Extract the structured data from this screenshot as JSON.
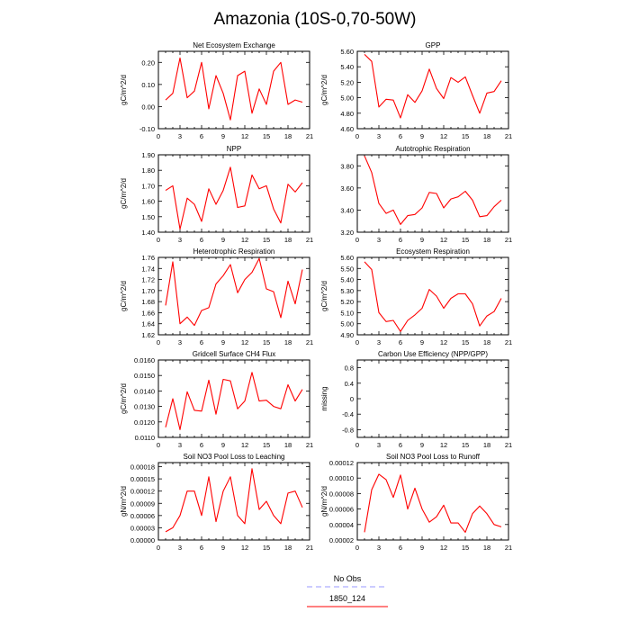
{
  "figure": {
    "title": "Amazonia (10S-0,70-50W)"
  },
  "legend": {
    "entries": [
      {
        "label": "No Obs",
        "color": "#9999ff",
        "style": "dashed"
      },
      {
        "label": "1850_124",
        "color": "#ff0000",
        "style": "solid"
      }
    ]
  },
  "chart_data": [
    {
      "type": "line",
      "title": "Net Ecosystem Exchange",
      "ylabel": "gC/m^2/d",
      "xlim": [
        0,
        21
      ],
      "xticks": [
        "0",
        "3",
        "6",
        "9",
        "12",
        "15",
        "18",
        "21"
      ],
      "ylim": [
        -0.1,
        0.25
      ],
      "yticks": [
        "-0.10",
        "0.00",
        "0.10",
        "0.20"
      ],
      "ytick_values": [
        -0.1,
        0.0,
        0.1,
        0.2
      ],
      "x": [
        1,
        2,
        3,
        4,
        5,
        6,
        7,
        8,
        9,
        10,
        11,
        12,
        13,
        14,
        15,
        16,
        17,
        18,
        19,
        20
      ],
      "series": [
        {
          "name": "1850_124",
          "color": "#ff0000",
          "values": [
            0.03,
            0.06,
            0.22,
            0.04,
            0.07,
            0.2,
            -0.01,
            0.14,
            0.06,
            -0.06,
            0.14,
            0.16,
            -0.03,
            0.08,
            0.01,
            0.16,
            0.2,
            0.01,
            0.03,
            0.02
          ]
        }
      ]
    },
    {
      "type": "line",
      "title": "GPP",
      "ylabel": "gC/m^2/d",
      "xlim": [
        0,
        21
      ],
      "xticks": [
        "0",
        "3",
        "6",
        "9",
        "12",
        "15",
        "18",
        "21"
      ],
      "ylim": [
        4.6,
        5.6
      ],
      "yticks": [
        "4.60",
        "4.80",
        "5.00",
        "5.20",
        "5.40",
        "5.60"
      ],
      "ytick_values": [
        4.6,
        4.8,
        5.0,
        5.2,
        5.4,
        5.6
      ],
      "x": [
        1,
        2,
        3,
        4,
        5,
        6,
        7,
        8,
        9,
        10,
        11,
        12,
        13,
        14,
        15,
        16,
        17,
        18,
        19,
        20
      ],
      "series": [
        {
          "name": "1850_124",
          "color": "#ff0000",
          "values": [
            5.56,
            5.47,
            4.88,
            4.98,
            4.97,
            4.74,
            5.04,
            4.94,
            5.09,
            5.37,
            5.12,
            4.99,
            5.26,
            5.2,
            5.27,
            5.03,
            4.8,
            5.06,
            5.08,
            5.22
          ]
        }
      ]
    },
    {
      "type": "line",
      "title": "NPP",
      "ylabel": "gC/m^2/d",
      "xlim": [
        0,
        21
      ],
      "xticks": [
        "0",
        "3",
        "6",
        "9",
        "12",
        "15",
        "18",
        "21"
      ],
      "ylim": [
        1.4,
        1.9
      ],
      "yticks": [
        "1.40",
        "1.50",
        "1.60",
        "1.70",
        "1.80",
        "1.90"
      ],
      "ytick_values": [
        1.4,
        1.5,
        1.6,
        1.7,
        1.8,
        1.9
      ],
      "x": [
        1,
        2,
        3,
        4,
        5,
        6,
        7,
        8,
        9,
        10,
        11,
        12,
        13,
        14,
        15,
        16,
        17,
        18,
        19,
        20
      ],
      "series": [
        {
          "name": "1850_124",
          "color": "#ff0000",
          "values": [
            1.67,
            1.7,
            1.42,
            1.62,
            1.58,
            1.47,
            1.68,
            1.58,
            1.67,
            1.82,
            1.56,
            1.57,
            1.77,
            1.68,
            1.7,
            1.55,
            1.46,
            1.71,
            1.66,
            1.72
          ]
        }
      ]
    },
    {
      "type": "line",
      "title": "Autotrophic Respiration",
      "ylabel": "",
      "xlim": [
        0,
        21
      ],
      "xticks": [
        "0",
        "3",
        "6",
        "9",
        "12",
        "15",
        "18",
        "21"
      ],
      "ylim": [
        3.2,
        3.9
      ],
      "yticks": [
        "3.20",
        "3.40",
        "3.60",
        "3.80"
      ],
      "ytick_values": [
        3.2,
        3.4,
        3.6,
        3.8
      ],
      "x": [
        1,
        2,
        3,
        4,
        5,
        6,
        7,
        8,
        9,
        10,
        11,
        12,
        13,
        14,
        15,
        16,
        17,
        18,
        19,
        20
      ],
      "series": [
        {
          "name": "1850_124",
          "color": "#ff0000",
          "values": [
            3.89,
            3.74,
            3.46,
            3.37,
            3.4,
            3.27,
            3.35,
            3.36,
            3.42,
            3.56,
            3.55,
            3.42,
            3.5,
            3.52,
            3.57,
            3.49,
            3.34,
            3.35,
            3.43,
            3.49
          ]
        }
      ]
    },
    {
      "type": "line",
      "title": "Heterotrophic Respiration",
      "ylabel": "gC/m^2/d",
      "xlim": [
        0,
        21
      ],
      "xticks": [
        "0",
        "3",
        "6",
        "9",
        "12",
        "15",
        "18",
        "21"
      ],
      "ylim": [
        1.62,
        1.76
      ],
      "yticks": [
        "1.62",
        "1.64",
        "1.66",
        "1.68",
        "1.70",
        "1.72",
        "1.74",
        "1.76"
      ],
      "ytick_values": [
        1.62,
        1.64,
        1.66,
        1.68,
        1.7,
        1.72,
        1.74,
        1.76
      ],
      "x": [
        1,
        2,
        3,
        4,
        5,
        6,
        7,
        8,
        9,
        10,
        11,
        12,
        13,
        14,
        15,
        16,
        17,
        18,
        19,
        20
      ],
      "series": [
        {
          "name": "1850_124",
          "color": "#ff0000",
          "values": [
            1.673,
            1.752,
            1.64,
            1.652,
            1.637,
            1.664,
            1.669,
            1.712,
            1.727,
            1.747,
            1.696,
            1.72,
            1.733,
            1.758,
            1.703,
            1.698,
            1.651,
            1.717,
            1.676,
            1.738
          ]
        }
      ]
    },
    {
      "type": "line",
      "title": "Ecosystem Respiration",
      "ylabel": "gC/m^2/d",
      "xlim": [
        0,
        21
      ],
      "xticks": [
        "0",
        "3",
        "6",
        "9",
        "12",
        "15",
        "18",
        "21"
      ],
      "ylim": [
        4.9,
        5.6
      ],
      "yticks": [
        "4.90",
        "5.00",
        "5.10",
        "5.20",
        "5.30",
        "5.40",
        "5.50",
        "5.60"
      ],
      "ytick_values": [
        4.9,
        5.0,
        5.1,
        5.2,
        5.3,
        5.4,
        5.5,
        5.6
      ],
      "x": [
        1,
        2,
        3,
        4,
        5,
        6,
        7,
        8,
        9,
        10,
        11,
        12,
        13,
        14,
        15,
        16,
        17,
        18,
        19,
        20
      ],
      "series": [
        {
          "name": "1850_124",
          "color": "#ff0000",
          "values": [
            5.56,
            5.49,
            5.1,
            5.02,
            5.03,
            4.93,
            5.03,
            5.08,
            5.14,
            5.31,
            5.25,
            5.14,
            5.23,
            5.27,
            5.27,
            5.18,
            4.98,
            5.07,
            5.11,
            5.23
          ]
        }
      ]
    },
    {
      "type": "line",
      "title": "Gridcell Surface CH4 Flux",
      "ylabel": "gC/m^2/d",
      "xlim": [
        0,
        21
      ],
      "xticks": [
        "0",
        "3",
        "6",
        "9",
        "12",
        "15",
        "18",
        "21"
      ],
      "ylim": [
        0.011,
        0.016
      ],
      "yticks": [
        "0.0110",
        "0.0120",
        "0.0130",
        "0.0140",
        "0.0150",
        "0.0160"
      ],
      "ytick_values": [
        0.011,
        0.012,
        0.013,
        0.014,
        0.015,
        0.016
      ],
      "x": [
        1,
        2,
        3,
        4,
        5,
        6,
        7,
        8,
        9,
        10,
        11,
        12,
        13,
        14,
        15,
        16,
        17,
        18,
        19,
        20
      ],
      "series": [
        {
          "name": "1850_124",
          "color": "#ff0000",
          "values": [
            0.01165,
            0.0135,
            0.0115,
            0.01395,
            0.01275,
            0.0127,
            0.0147,
            0.0125,
            0.01475,
            0.01465,
            0.01285,
            0.01335,
            0.0152,
            0.01335,
            0.0134,
            0.013,
            0.01285,
            0.0144,
            0.01335,
            0.0141
          ]
        }
      ]
    },
    {
      "type": "line",
      "title": "Carbon Use Efficiency (NPP/GPP)",
      "ylabel": "missing",
      "xlim": [
        0,
        21
      ],
      "xticks": [
        "0",
        "3",
        "6",
        "9",
        "12",
        "15",
        "18",
        "21"
      ],
      "ylim": [
        -1.0,
        1.0
      ],
      "yticks": [
        "-0.8",
        "-0.4",
        "0",
        "0.4",
        "0.8"
      ],
      "ytick_values": [
        -0.8,
        -0.4,
        0,
        0.4,
        0.8
      ],
      "x": [],
      "series": []
    },
    {
      "type": "line",
      "title": "Soil NO3 Pool Loss to Leaching",
      "ylabel": "gN/m^2/d",
      "xlim": [
        0,
        21
      ],
      "xticks": [
        "0",
        "3",
        "6",
        "9",
        "12",
        "15",
        "18",
        "21"
      ],
      "ylim": [
        0,
        0.00019
      ],
      "yticks": [
        "0.00000",
        "0.00003",
        "0.00006",
        "0.00009",
        "0.00012",
        "0.00015",
        "0.00018"
      ],
      "ytick_values": [
        0,
        3e-05,
        6e-05,
        9e-05,
        0.00012,
        0.00015,
        0.00018
      ],
      "x": [
        1,
        2,
        3,
        4,
        5,
        6,
        7,
        8,
        9,
        10,
        11,
        12,
        13,
        14,
        15,
        16,
        17,
        18,
        19,
        20
      ],
      "series": [
        {
          "name": "1850_124",
          "color": "#ff0000",
          "values": [
            2e-05,
            3e-05,
            6e-05,
            0.00012,
            0.00012,
            6e-05,
            0.000155,
            4.5e-05,
            0.00012,
            0.000155,
            6e-05,
            4e-05,
            0.000175,
            7.5e-05,
            9.5e-05,
            6e-05,
            4e-05,
            0.000115,
            0.00012,
            8e-05
          ]
        }
      ]
    },
    {
      "type": "line",
      "title": "Soil NO3 Pool Loss to Runoff",
      "ylabel": "gN/m^2/d",
      "xlim": [
        0,
        21
      ],
      "xticks": [
        "0",
        "3",
        "6",
        "9",
        "12",
        "15",
        "18",
        "21"
      ],
      "ylim": [
        2e-05,
        0.00012
      ],
      "yticks": [
        "0.00002",
        "0.00004",
        "0.00006",
        "0.00008",
        "0.00010",
        "0.00012"
      ],
      "ytick_values": [
        2e-05,
        4e-05,
        6e-05,
        8e-05,
        0.0001,
        0.00012
      ],
      "x": [
        1,
        2,
        3,
        4,
        5,
        6,
        7,
        8,
        9,
        10,
        11,
        12,
        13,
        14,
        15,
        16,
        17,
        18,
        19,
        20
      ],
      "series": [
        {
          "name": "1850_124",
          "color": "#ff0000",
          "values": [
            3e-05,
            8.5e-05,
            0.000105,
            9.8e-05,
            7.5e-05,
            0.000104,
            6e-05,
            8.7e-05,
            6e-05,
            4.3e-05,
            5e-05,
            6.5e-05,
            4.2e-05,
            4.2e-05,
            3e-05,
            5.4e-05,
            6.4e-05,
            5.4e-05,
            4e-05,
            3.7e-05
          ]
        }
      ]
    }
  ]
}
